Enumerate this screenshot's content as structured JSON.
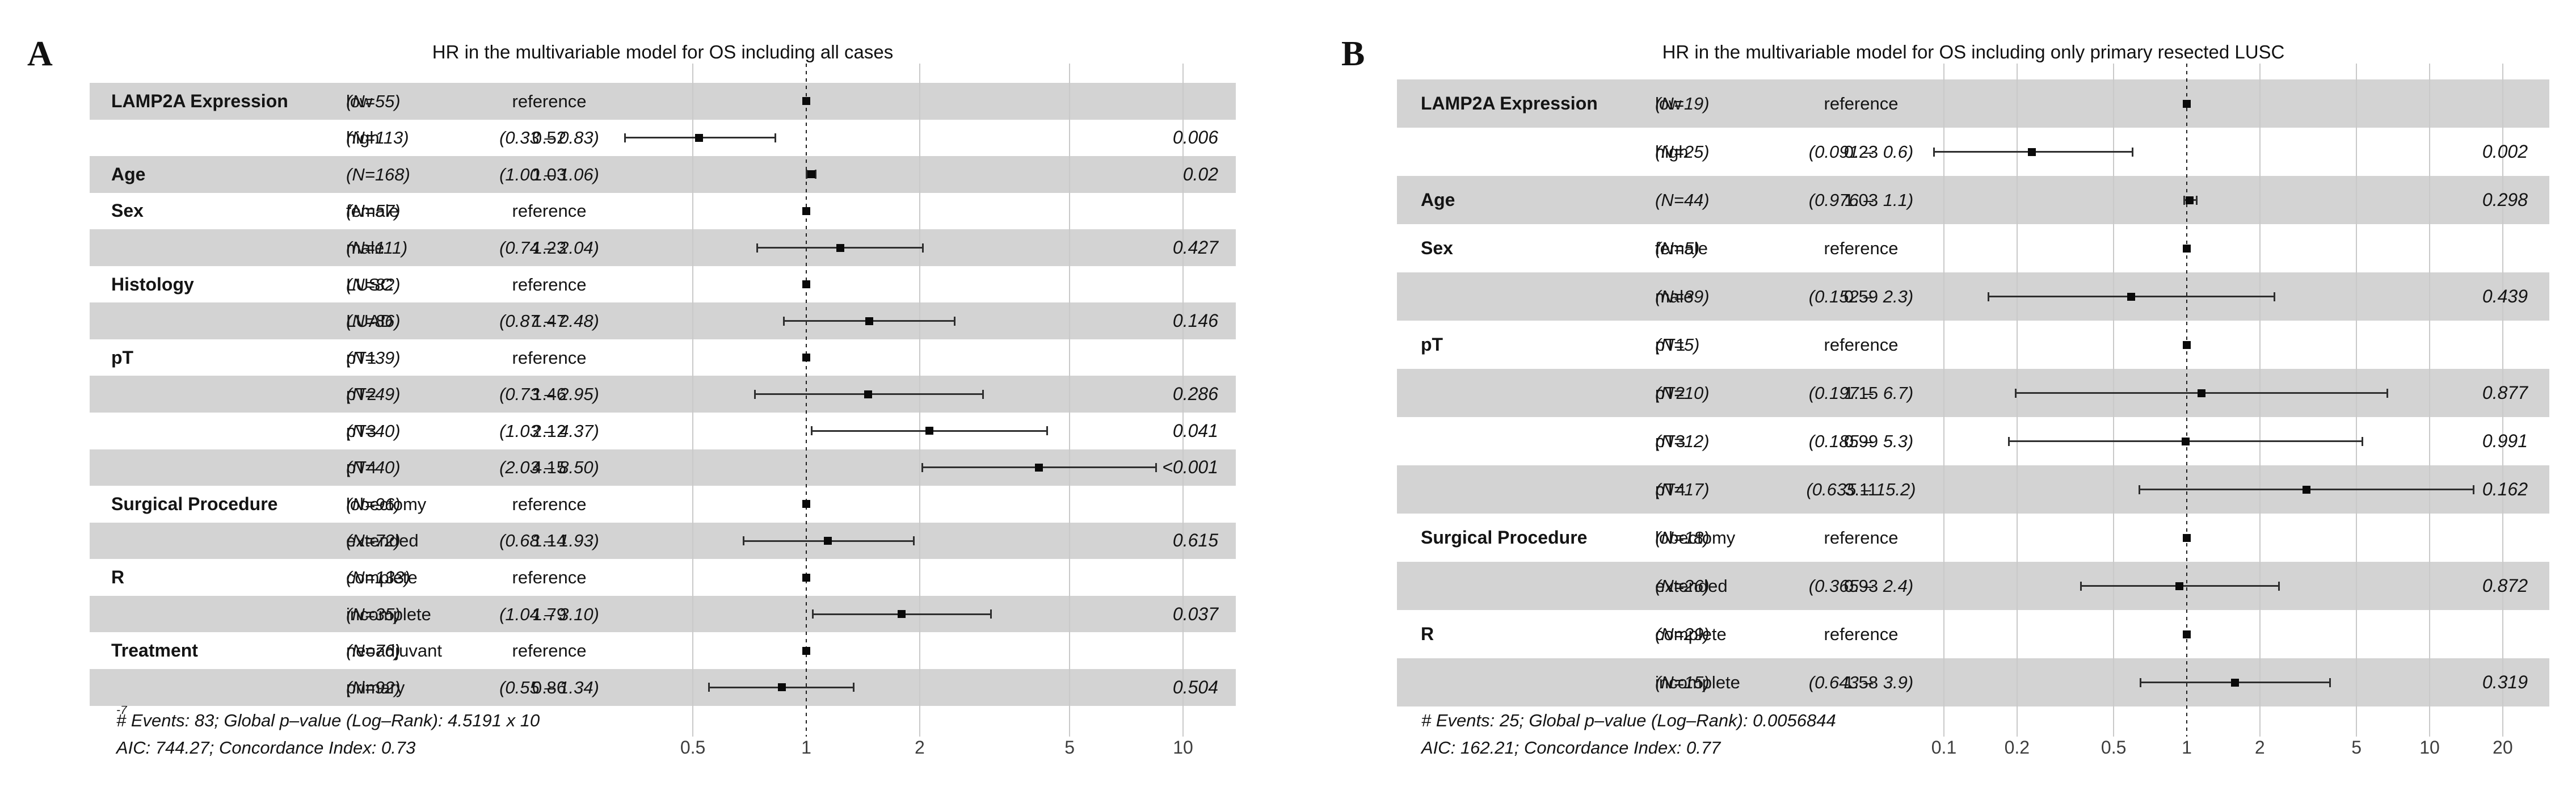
{
  "colors": {
    "row_band": "#d3d3d3",
    "gridline": "#c9c9c9",
    "marker": "#0a0a0a",
    "reference_line": "#1c1c1c"
  },
  "chart_data": [
    {
      "type": "scatter",
      "variant": "forest-plot",
      "panel_label": "A",
      "title": "HR in the multivariable model for OS including all cases",
      "xscale": "log",
      "x_tick_labels": [
        "0.5",
        "1",
        "2",
        "5",
        "10"
      ],
      "xlim": [
        0.3,
        11
      ],
      "reference_line_x": 1,
      "legend": "none",
      "grid": "vertical",
      "footer_events": "# Events: 83; Global p–value (Log–Rank): 4.5191 x 10",
      "footer_events_sup": "-7",
      "footer_aic": "AIC: 744.27; Concordance Index: 0.73",
      "rows": [
        {
          "variable": "LAMP2A Expression",
          "level": "low",
          "n": "(N=55)",
          "estimate": "reference",
          "hr": 1,
          "shaded": true,
          "reference": true
        },
        {
          "level": "high",
          "n": "(N=113)",
          "estimate": "0.52",
          "ci": "(0.33 – 0.83)",
          "hr": 0.52,
          "lo": 0.33,
          "hi": 0.83,
          "p": "0.006",
          "shaded": false
        },
        {
          "variable": "Age",
          "n": "(N=168)",
          "estimate": "1.03",
          "ci": "(1.00 – 1.06)",
          "hr": 1.03,
          "lo": 1.0,
          "hi": 1.06,
          "p": "0.02",
          "shaded": true
        },
        {
          "variable": "Sex",
          "level": "female",
          "n": "(N=57)",
          "estimate": "reference",
          "hr": 1,
          "shaded": false,
          "reference": true
        },
        {
          "level": "male",
          "n": "(N=111)",
          "estimate": "1.23",
          "ci": "(0.74 – 2.04)",
          "hr": 1.23,
          "lo": 0.74,
          "hi": 2.04,
          "p": "0.427",
          "shaded": true
        },
        {
          "variable": "Histology",
          "level": "LUSC",
          "n": "(N=82)",
          "estimate": "reference",
          "hr": 1,
          "shaded": false,
          "reference": true
        },
        {
          "level": "LUAD",
          "n": "(N=86)",
          "estimate": "1.47",
          "ci": "(0.87 – 2.48)",
          "hr": 1.47,
          "lo": 0.87,
          "hi": 2.48,
          "p": "0.146",
          "shaded": true
        },
        {
          "variable": "pT",
          "level": "pT1",
          "n": "(N=39)",
          "estimate": "reference",
          "hr": 1,
          "shaded": false,
          "reference": true
        },
        {
          "level": "pT2",
          "n": "(N=49)",
          "estimate": "1.46",
          "ci": "(0.73 – 2.95)",
          "hr": 1.46,
          "lo": 0.73,
          "hi": 2.95,
          "p": "0.286",
          "shaded": true
        },
        {
          "level": "pT3",
          "n": "(N=40)",
          "estimate": "2.12",
          "ci": "(1.03 – 4.37)",
          "hr": 2.12,
          "lo": 1.03,
          "hi": 4.37,
          "p": "0.041",
          "shaded": false
        },
        {
          "level": "pT4",
          "n": "(N=40)",
          "estimate": "4.15",
          "ci": "(2.03 – 8.50)",
          "hr": 4.15,
          "lo": 2.03,
          "hi": 8.5,
          "p": "<0.001",
          "shaded": true
        },
        {
          "variable": "Surgical Procedure",
          "level": "lobectomy",
          "n": "(N=96)",
          "estimate": "reference",
          "hr": 1,
          "shaded": false,
          "reference": true
        },
        {
          "level": "extended",
          "n": "(N=72)",
          "estimate": "1.14",
          "ci": "(0.68 – 1.93)",
          "hr": 1.14,
          "lo": 0.68,
          "hi": 1.93,
          "p": "0.615",
          "shaded": true
        },
        {
          "variable": "R",
          "level": "complete",
          "n": "(N=133)",
          "estimate": "reference",
          "hr": 1,
          "shaded": false,
          "reference": true
        },
        {
          "level": "incomplete",
          "n": "(N=35)",
          "estimate": "1.79",
          "ci": "(1.04 – 3.10)",
          "hr": 1.79,
          "lo": 1.04,
          "hi": 3.1,
          "p": "0.037",
          "shaded": true
        },
        {
          "variable": "Treatment",
          "level": "neoadjuvant",
          "n": "(N=76)",
          "estimate": "reference",
          "hr": 1,
          "shaded": false,
          "reference": true
        },
        {
          "level": "primary",
          "n": "(N=92)",
          "estimate": "0.86",
          "ci": "(0.55 – 1.34)",
          "hr": 0.86,
          "lo": 0.55,
          "hi": 1.34,
          "p": "0.504",
          "shaded": true
        }
      ]
    },
    {
      "type": "scatter",
      "variant": "forest-plot",
      "panel_label": "B",
      "title": "HR in the multivariable model for OS including only primary resected LUSC",
      "xscale": "log",
      "x_tick_labels": [
        "0.1",
        "0.2",
        "0.5",
        "1",
        "2",
        "5",
        "10",
        "20"
      ],
      "xlim": [
        0.09,
        21
      ],
      "reference_line_x": 1,
      "legend": "none",
      "grid": "vertical",
      "footer_events": "# Events: 25; Global p–value (Log–Rank): 0.0056844",
      "footer_aic": "AIC: 162.21; Concordance Index: 0.77",
      "rows": [
        {
          "variable": "LAMP2A Expression",
          "level": "low",
          "n": "(N=19)",
          "estimate": "reference",
          "hr": 1,
          "shaded": true,
          "reference": true
        },
        {
          "level": "high",
          "n": "(N=25)",
          "estimate": "0.23",
          "ci": "(0.091 –  0.6)",
          "hr": 0.23,
          "lo": 0.091,
          "hi": 0.6,
          "p": "0.002",
          "shaded": false
        },
        {
          "variable": "Age",
          "n": "(N=44)",
          "estimate": "1.03",
          "ci": "(0.976 –  1.1)",
          "hr": 1.03,
          "lo": 0.976,
          "hi": 1.1,
          "p": "0.298",
          "shaded": true
        },
        {
          "variable": "Sex",
          "level": "female",
          "n": "(N=5)",
          "estimate": "reference",
          "hr": 1,
          "shaded": false,
          "reference": true
        },
        {
          "level": "male",
          "n": "(N=39)",
          "estimate": "0.59",
          "ci": "(0.152 –  2.3)",
          "hr": 0.59,
          "lo": 0.152,
          "hi": 2.3,
          "p": "0.439",
          "shaded": true
        },
        {
          "variable": "pT",
          "level": "pT1",
          "n": "(N=5)",
          "estimate": "reference",
          "hr": 1,
          "shaded": false,
          "reference": true
        },
        {
          "level": "pT2",
          "n": "(N=10)",
          "estimate": "1.15",
          "ci": "(0.197 –  6.7)",
          "hr": 1.15,
          "lo": 0.197,
          "hi": 6.7,
          "p": "0.877",
          "shaded": true
        },
        {
          "level": "pT3",
          "n": "(N=12)",
          "estimate": "0.99",
          "ci": "(0.185 –  5.3)",
          "hr": 0.99,
          "lo": 0.185,
          "hi": 5.3,
          "p": "0.991",
          "shaded": false
        },
        {
          "level": "pT4",
          "n": "(N=17)",
          "estimate": "3.11",
          "ci": "(0.635 – 15.2)",
          "hr": 3.11,
          "lo": 0.635,
          "hi": 15.2,
          "p": "0.162",
          "shaded": true
        },
        {
          "variable": "Surgical Procedure",
          "level": "lobectomy",
          "n": "(N=18)",
          "estimate": "reference",
          "hr": 1,
          "shaded": false,
          "reference": true
        },
        {
          "level": "extended",
          "n": "(N=26)",
          "estimate": "0.93",
          "ci": "(0.365 –  2.4)",
          "hr": 0.93,
          "lo": 0.365,
          "hi": 2.4,
          "p": "0.872",
          "shaded": true
        },
        {
          "variable": "R",
          "level": "complete",
          "n": "(N=29)",
          "estimate": "reference",
          "hr": 1,
          "shaded": false,
          "reference": true
        },
        {
          "level": "incomplete",
          "n": "(N=15)",
          "estimate": "1.58",
          "ci": "(0.643 –  3.9)",
          "hr": 1.58,
          "lo": 0.643,
          "hi": 3.9,
          "p": "0.319",
          "shaded": true
        }
      ]
    }
  ]
}
